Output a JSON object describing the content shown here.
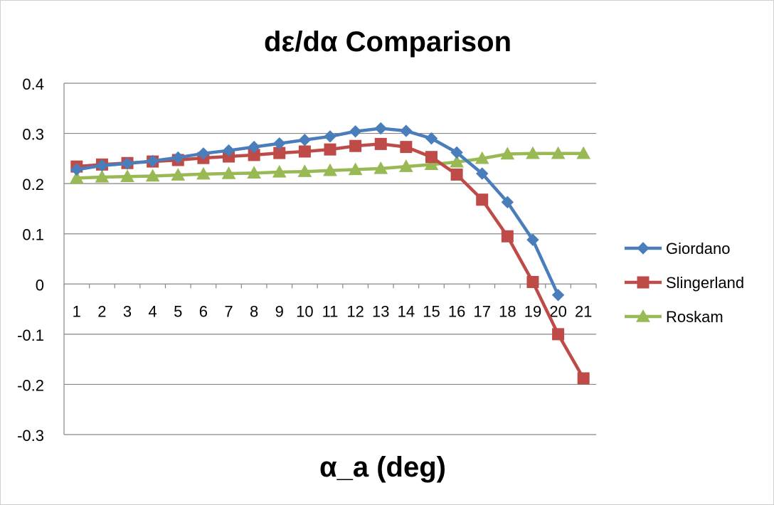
{
  "chart_data": {
    "type": "line",
    "title": "dε/dα Comparison",
    "xlabel": "α_a (deg)",
    "ylabel": "",
    "categories": [
      "1",
      "2",
      "3",
      "4",
      "5",
      "6",
      "7",
      "8",
      "9",
      "10",
      "11",
      "12",
      "13",
      "14",
      "15",
      "16",
      "17",
      "18",
      "19",
      "20",
      "21"
    ],
    "ylim": [
      -0.3,
      0.4
    ],
    "yticks": [
      "0.4",
      "0.3",
      "0.2",
      "0.1",
      "0",
      "-0.1",
      "-0.2",
      "-0.3"
    ],
    "ytick_values": [
      0.4,
      0.3,
      0.2,
      0.1,
      0,
      -0.1,
      -0.2,
      -0.3
    ],
    "grid": true,
    "legend_position": "right",
    "series": [
      {
        "name": "Giordano",
        "color": "#4a7ebb",
        "marker": "diamond",
        "values": [
          0.228,
          0.236,
          0.24,
          0.245,
          0.252,
          0.26,
          0.266,
          0.273,
          0.28,
          0.287,
          0.294,
          0.304,
          0.31,
          0.305,
          0.29,
          0.262,
          0.22,
          0.163,
          0.088,
          -0.022,
          null
        ]
      },
      {
        "name": "Slingerland",
        "color": "#be4b48",
        "marker": "square",
        "values": [
          0.234,
          0.238,
          0.241,
          0.244,
          0.247,
          0.251,
          0.254,
          0.257,
          0.261,
          0.264,
          0.268,
          0.275,
          0.279,
          0.273,
          0.253,
          0.218,
          0.168,
          0.095,
          0.004,
          -0.1,
          -0.188
        ]
      },
      {
        "name": "Roskam",
        "color": "#98b954",
        "marker": "triangle",
        "values": [
          0.211,
          0.213,
          0.214,
          0.215,
          0.217,
          0.219,
          0.22,
          0.221,
          0.223,
          0.224,
          0.226,
          0.228,
          0.23,
          0.234,
          0.238,
          0.243,
          0.25,
          0.259,
          0.26,
          0.26,
          0.26
        ]
      }
    ]
  }
}
